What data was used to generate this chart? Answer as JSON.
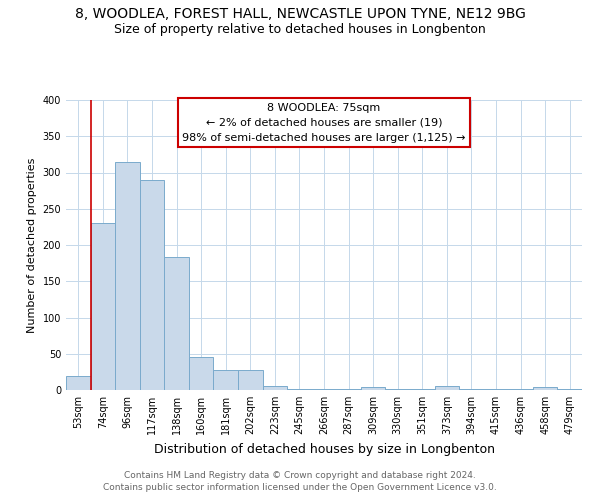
{
  "title_line1": "8, WOODLEA, FOREST HALL, NEWCASTLE UPON TYNE, NE12 9BG",
  "title_line2": "Size of property relative to detached houses in Longbenton",
  "xlabel": "Distribution of detached houses by size in Longbenton",
  "ylabel": "Number of detached properties",
  "footnote1": "Contains HM Land Registry data © Crown copyright and database right 2024.",
  "footnote2": "Contains public sector information licensed under the Open Government Licence v3.0.",
  "categories": [
    "53sqm",
    "74sqm",
    "96sqm",
    "117sqm",
    "138sqm",
    "160sqm",
    "181sqm",
    "202sqm",
    "223sqm",
    "245sqm",
    "266sqm",
    "287sqm",
    "309sqm",
    "330sqm",
    "351sqm",
    "373sqm",
    "394sqm",
    "415sqm",
    "436sqm",
    "458sqm",
    "479sqm"
  ],
  "values": [
    20,
    230,
    315,
    290,
    183,
    46,
    28,
    27,
    5,
    1,
    1,
    1,
    4,
    1,
    1,
    5,
    1,
    1,
    1,
    4,
    1
  ],
  "bar_color": "#c9d9ea",
  "bar_edgecolor": "#7aaacc",
  "annotation_text": "8 WOODLEA: 75sqm\n← 2% of detached houses are smaller (19)\n98% of semi-detached houses are larger (1,125) →",
  "vline_color": "#cc0000",
  "vline_x_index": 1,
  "background_color": "#ffffff",
  "grid_color": "#c5d8ea",
  "title_fontsize": 10,
  "subtitle_fontsize": 9,
  "xlabel_fontsize": 9,
  "ylabel_fontsize": 8,
  "tick_fontsize": 7,
  "annot_fontsize": 8,
  "footnote_fontsize": 6.5,
  "ylim": [
    0,
    400
  ],
  "yticks": [
    0,
    50,
    100,
    150,
    200,
    250,
    300,
    350,
    400
  ]
}
